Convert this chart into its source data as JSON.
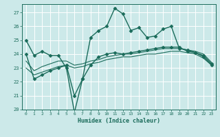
{
  "title": "",
  "xlabel": "Humidex (Indice chaleur)",
  "ylabel": "",
  "background_color": "#cce9e9",
  "grid_color": "#ffffff",
  "line_color": "#1a6b5a",
  "xlim": [
    -0.5,
    23.5
  ],
  "ylim": [
    20,
    27.6
  ],
  "yticks": [
    20,
    21,
    22,
    23,
    24,
    25,
    26,
    27
  ],
  "xticks": [
    0,
    1,
    2,
    3,
    4,
    5,
    6,
    7,
    8,
    9,
    10,
    11,
    12,
    13,
    14,
    15,
    16,
    17,
    18,
    19,
    20,
    21,
    22,
    23
  ],
  "series": [
    [
      25.0,
      23.9,
      24.2,
      23.9,
      23.9,
      23.0,
      19.8,
      22.2,
      25.2,
      25.7,
      26.0,
      27.3,
      26.9,
      25.7,
      25.9,
      25.2,
      25.3,
      25.8,
      26.0,
      24.4,
      24.3,
      24.1,
      23.8,
      23.2
    ],
    [
      24.0,
      22.2,
      22.5,
      22.8,
      23.0,
      23.2,
      21.0,
      22.2,
      23.2,
      23.8,
      24.0,
      24.1,
      24.0,
      24.1,
      24.2,
      24.3,
      24.4,
      24.5,
      24.5,
      24.5,
      24.2,
      24.1,
      23.9,
      23.3
    ],
    [
      23.5,
      22.8,
      23.1,
      23.3,
      23.5,
      23.5,
      23.2,
      23.3,
      23.5,
      23.6,
      23.8,
      23.9,
      24.0,
      24.0,
      24.1,
      24.2,
      24.3,
      24.4,
      24.4,
      24.4,
      24.3,
      24.2,
      24.0,
      23.4
    ],
    [
      23.0,
      22.5,
      22.7,
      22.9,
      23.1,
      23.2,
      23.0,
      23.1,
      23.3,
      23.4,
      23.6,
      23.7,
      23.8,
      23.8,
      23.9,
      24.0,
      24.0,
      24.1,
      24.2,
      24.2,
      24.1,
      24.0,
      23.7,
      23.2
    ]
  ],
  "markers": [
    "D",
    "D",
    null,
    null
  ],
  "markersizes": [
    2.5,
    2.5,
    0,
    0
  ],
  "linewidths": [
    1.0,
    1.0,
    0.8,
    0.8
  ],
  "font_size_x": 4.5,
  "font_size_y": 5.0,
  "font_size_xlabel": 6.0
}
